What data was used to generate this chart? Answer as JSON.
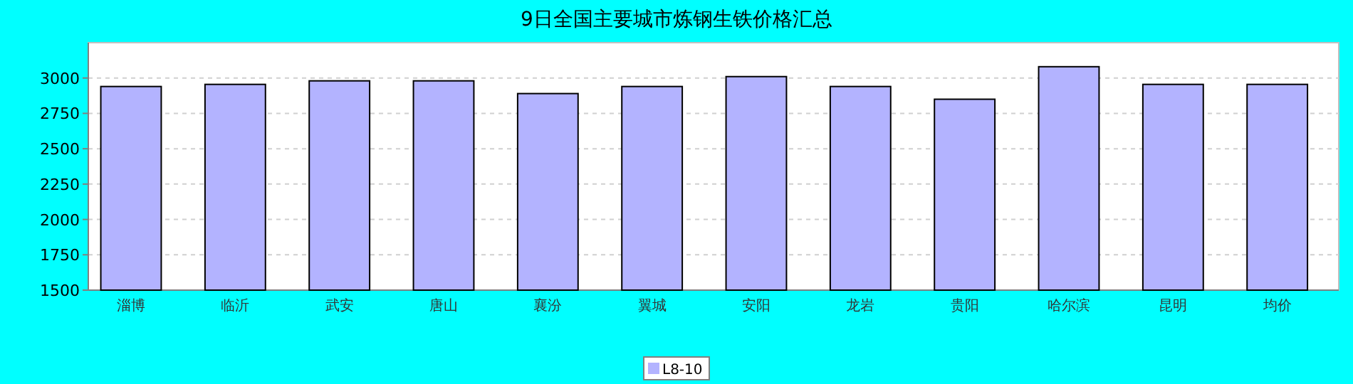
{
  "chart_data": {
    "type": "bar",
    "title": "9日全国主要城市炼钢生铁价格汇总",
    "categories": [
      "淄博",
      "临沂",
      "武安",
      "唐山",
      "襄汾",
      "翼城",
      "安阳",
      "龙岩",
      "贵阳",
      "哈尔滨",
      "昆明",
      "均价"
    ],
    "series": [
      {
        "name": "L8-10",
        "color": "#b3b3ff",
        "values": [
          2940,
          2955,
          2980,
          2980,
          2890,
          2940,
          3010,
          2940,
          2850,
          3080,
          2955,
          2955
        ]
      }
    ],
    "ylim": [
      1500,
      3250
    ],
    "yticks": [
      1500,
      1750,
      2000,
      2250,
      2500,
      2750,
      3000
    ],
    "grid": "y",
    "legend": "bottom"
  }
}
